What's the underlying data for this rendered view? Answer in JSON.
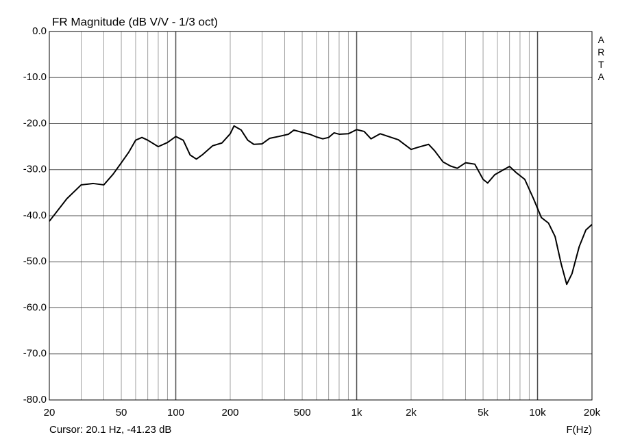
{
  "chart_data": {
    "type": "line",
    "title": "FR Magnitude (dB V/V - 1/3 oct)",
    "watermark": "ARTA",
    "x_label": "F(Hz)",
    "cursor": "Cursor: 20.1 Hz, -41.23 dB",
    "xscale": "log",
    "xlim": [
      20,
      20000
    ],
    "ylim": [
      -80,
      0
    ],
    "xticks": [
      20,
      50,
      100,
      200,
      500,
      {
        "value": 1000,
        "label": "1k"
      },
      {
        "value": 2000,
        "label": "2k"
      },
      {
        "value": 5000,
        "label": "5k"
      },
      {
        "value": 10000,
        "label": "10k"
      },
      {
        "value": 20000,
        "label": "20k"
      }
    ],
    "x_minor_grid": [
      30,
      40,
      60,
      70,
      80,
      90,
      300,
      400,
      600,
      700,
      800,
      900,
      3000,
      4000,
      6000,
      7000,
      8000,
      9000
    ],
    "yticks": [
      {
        "value": 0,
        "label": "0.0"
      },
      {
        "value": -10,
        "label": "-10.0"
      },
      {
        "value": -20,
        "label": "-20.0"
      },
      {
        "value": -30,
        "label": "-30.0"
      },
      {
        "value": -40,
        "label": "-40.0"
      },
      {
        "value": -50,
        "label": "-50.0"
      },
      {
        "value": -60,
        "label": "-60.0"
      },
      {
        "value": -70,
        "label": "-70.0"
      },
      {
        "value": -80,
        "label": "-80.0"
      }
    ],
    "grid": true,
    "x": [
      20,
      25,
      30,
      35,
      40,
      45,
      50,
      55,
      60,
      65,
      70,
      80,
      90,
      100,
      110,
      120,
      130,
      140,
      160,
      180,
      200,
      210,
      230,
      250,
      270,
      300,
      330,
      370,
      420,
      450,
      500,
      550,
      600,
      650,
      700,
      750,
      800,
      900,
      1000,
      1100,
      1200,
      1350,
      1500,
      1700,
      2000,
      2200,
      2500,
      2700,
      3000,
      3300,
      3600,
      4000,
      4500,
      5000,
      5300,
      5800,
      6300,
      7000,
      7600,
      8500,
      9500,
      10500,
      11500,
      12500,
      13500,
      14500,
      15500,
      17000,
      18500,
      20000
    ],
    "series": [
      {
        "color": "#000000",
        "values": [
          -41.2,
          -36.3,
          -33.3,
          -33.0,
          -33.3,
          -31.0,
          -28.5,
          -26.2,
          -23.6,
          -23.0,
          -23.6,
          -25.0,
          -24.1,
          -22.8,
          -23.6,
          -26.8,
          -27.7,
          -26.8,
          -24.8,
          -24.2,
          -22.2,
          -20.5,
          -21.4,
          -23.6,
          -24.5,
          -24.4,
          -23.2,
          -22.8,
          -22.3,
          -21.4,
          -21.9,
          -22.3,
          -22.9,
          -23.3,
          -23.0,
          -22.0,
          -22.3,
          -22.2,
          -21.3,
          -21.7,
          -23.3,
          -22.2,
          -22.8,
          -23.5,
          -25.6,
          -25.1,
          -24.5,
          -25.9,
          -28.3,
          -29.2,
          -29.7,
          -28.5,
          -28.8,
          -32.1,
          -32.9,
          -31.1,
          -30.3,
          -29.3,
          -30.6,
          -32.1,
          -36.3,
          -40.4,
          -41.6,
          -44.5,
          -50.4,
          -54.9,
          -52.6,
          -46.7,
          -43.1,
          -41.9
        ]
      }
    ]
  }
}
